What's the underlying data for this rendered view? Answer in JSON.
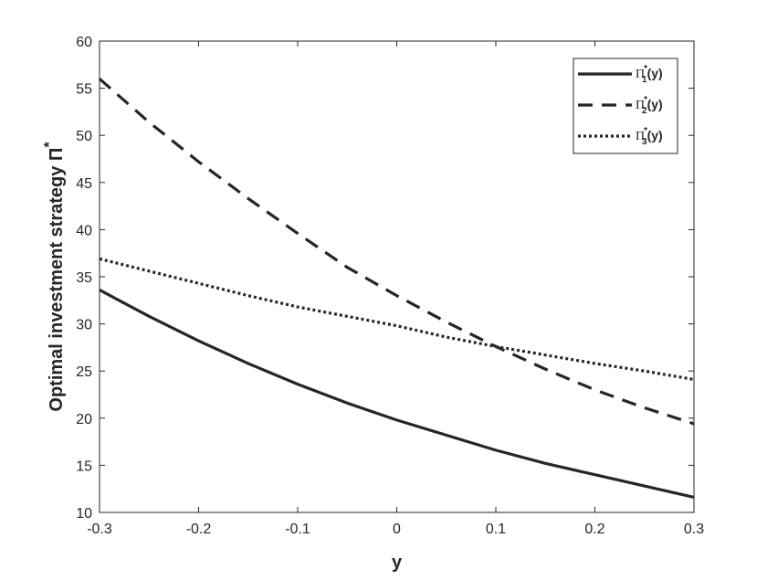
{
  "chart_data": {
    "type": "line",
    "xlabel": "y",
    "ylabel": "Optimal investment strategy Π",
    "ylabel_superscript": "*",
    "xlim": [
      -0.3,
      0.3
    ],
    "ylim": [
      10,
      60
    ],
    "xticks": [
      -0.3,
      -0.2,
      -0.1,
      0,
      0.1,
      0.2,
      0.3
    ],
    "xtick_labels": [
      "-0.3",
      "-0.2",
      "-0.1",
      "0",
      "0.1",
      "0.2",
      "0.3"
    ],
    "yticks": [
      10,
      15,
      20,
      25,
      30,
      35,
      40,
      45,
      50,
      55,
      60
    ],
    "ytick_labels": [
      "10",
      "15",
      "20",
      "25",
      "30",
      "35",
      "40",
      "45",
      "50",
      "55",
      "60"
    ],
    "grid": false,
    "legend_position": "top-right",
    "x": [
      -0.3,
      -0.25,
      -0.2,
      -0.15,
      -0.1,
      -0.05,
      0,
      0.05,
      0.1,
      0.15,
      0.2,
      0.25,
      0.3
    ],
    "series": [
      {
        "legend_base": "Π",
        "legend_sub": "1",
        "legend_sup": "*",
        "legend_suffix": "(y)",
        "dash": "solid",
        "color": "#262626",
        "values": [
          33.6,
          30.8,
          28.2,
          25.8,
          23.6,
          21.6,
          19.8,
          18.2,
          16.6,
          15.2,
          14.0,
          12.8,
          11.6
        ]
      },
      {
        "legend_base": "Π",
        "legend_sub": "2",
        "legend_sup": "*",
        "legend_suffix": "(y)",
        "dash": "dashed",
        "color": "#262626",
        "values": [
          56.0,
          51.4,
          47.2,
          43.3,
          39.6,
          36.0,
          33.0,
          30.2,
          27.6,
          25.2,
          23.0,
          21.1,
          19.4
        ]
      },
      {
        "legend_base": "Π",
        "legend_sub": "3",
        "legend_sup": "*",
        "legend_suffix": "(y)",
        "dash": "dotted",
        "color": "#262626",
        "values": [
          36.9,
          35.6,
          34.3,
          33.0,
          31.8,
          30.8,
          29.8,
          28.6,
          27.6,
          26.7,
          25.8,
          25.0,
          24.1
        ]
      }
    ]
  }
}
